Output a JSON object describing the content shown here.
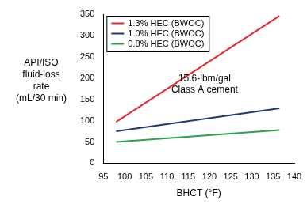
{
  "chart_data": {
    "type": "line",
    "x_label": "BHCT (°F)",
    "y_label": [
      "API/ISO",
      "fluid-loss",
      "rate",
      "(mL/30 min)"
    ],
    "annotation": [
      "15.6-lbm/gal",
      "Class A cement"
    ],
    "x": [
      98,
      136.5
    ],
    "series": [
      {
        "name": "1.3% HEC (BWOC)",
        "color": "#e8262d",
        "values": [
          97,
          346
        ]
      },
      {
        "name": "1.0% HEC (BWOC)",
        "color": "#1f3b73",
        "values": [
          75,
          129
        ]
      },
      {
        "name": "0.8% HEC (BWOC)",
        "color": "#2ca24a",
        "values": [
          50,
          78
        ]
      }
    ],
    "xlim": [
      95,
      140
    ],
    "xticks": [
      95,
      100,
      105,
      110,
      115,
      120,
      125,
      130,
      135,
      140
    ],
    "ylim": [
      0,
      350
    ],
    "yticks": [
      0,
      50,
      100,
      150,
      200,
      250,
      300,
      350
    ],
    "grid": false,
    "legend": "upper left"
  }
}
